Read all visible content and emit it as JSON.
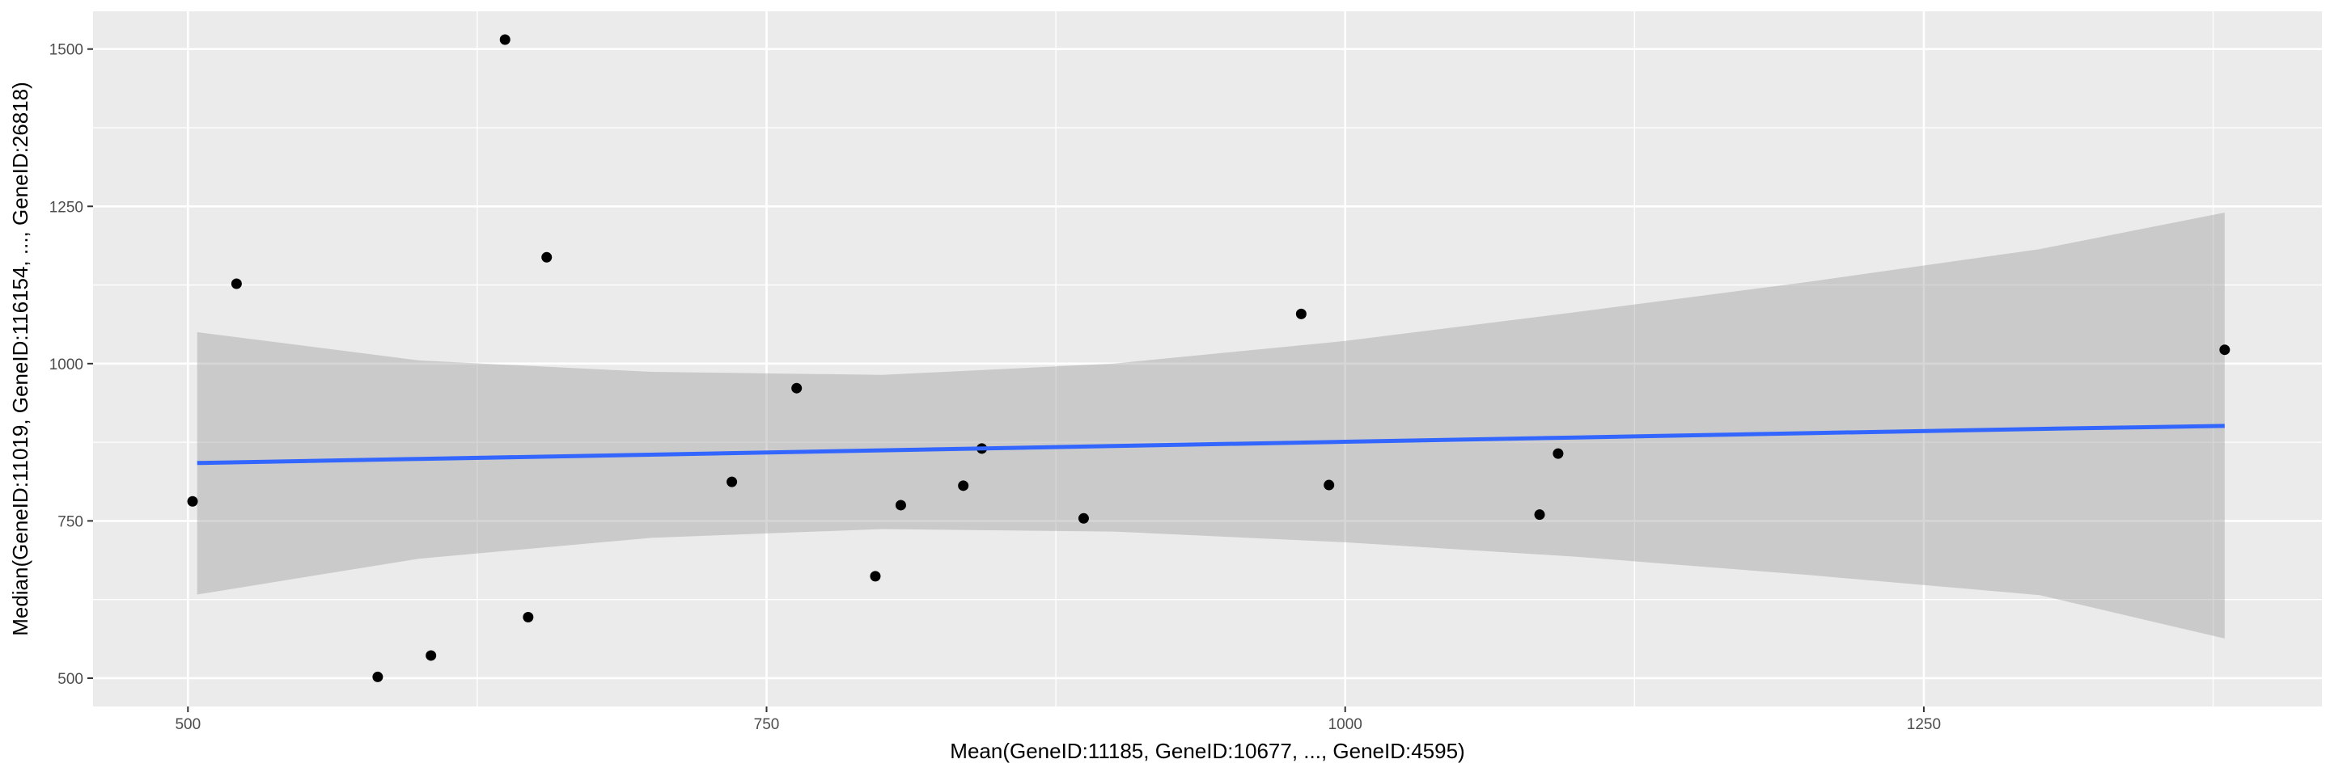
{
  "chart_data": {
    "type": "scatter",
    "title": "",
    "xlabel": "Mean(GeneID:11185, GeneID:10677, ..., GeneID:4595)",
    "ylabel": "Median(GeneID:11019, GeneID:116154, ..., GeneID:26818)",
    "xlim": [
      459,
      1422
    ],
    "ylim": [
      455,
      1560
    ],
    "x_ticks": [
      500,
      750,
      1000,
      1250
    ],
    "x_tick_labels": [
      "500",
      "750",
      "1000",
      "1250"
    ],
    "y_ticks": [
      500,
      750,
      1000,
      1250,
      1500
    ],
    "y_tick_labels": [
      "500",
      "750",
      "1000",
      "1250",
      "1500"
    ],
    "grid": true,
    "legend": "none",
    "colors": {
      "panel": "#ebebeb",
      "grid": "#ffffff",
      "points": "#000000",
      "fit_line": "#3366ff",
      "confidence_band": "#999999"
    },
    "points": [
      {
        "x": 502,
        "y": 781
      },
      {
        "x": 521,
        "y": 1127
      },
      {
        "x": 582,
        "y": 502
      },
      {
        "x": 605,
        "y": 536
      },
      {
        "x": 637,
        "y": 1515
      },
      {
        "x": 647,
        "y": 597
      },
      {
        "x": 655,
        "y": 1169
      },
      {
        "x": 735,
        "y": 812
      },
      {
        "x": 763,
        "y": 961
      },
      {
        "x": 797,
        "y": 662
      },
      {
        "x": 808,
        "y": 775
      },
      {
        "x": 835,
        "y": 806
      },
      {
        "x": 843,
        "y": 865
      },
      {
        "x": 887,
        "y": 754
      },
      {
        "x": 981,
        "y": 1079
      },
      {
        "x": 993,
        "y": 807
      },
      {
        "x": 1084,
        "y": 760
      },
      {
        "x": 1092,
        "y": 857
      },
      {
        "x": 1380,
        "y": 1022
      }
    ],
    "smooth": {
      "method": "lm",
      "x": [
        504,
        600,
        700,
        800,
        900,
        1000,
        1100,
        1200,
        1300,
        1380
      ],
      "fit": [
        842,
        848.5,
        855.3,
        862.2,
        869,
        875.8,
        882.6,
        889.4,
        896.2,
        901
      ],
      "lower": [
        633,
        690,
        723,
        737,
        733,
        716,
        693,
        664,
        632,
        563
      ],
      "upper": [
        1050,
        1005,
        987,
        982,
        1000,
        1036,
        1082,
        1130,
        1182,
        1240
      ]
    }
  }
}
